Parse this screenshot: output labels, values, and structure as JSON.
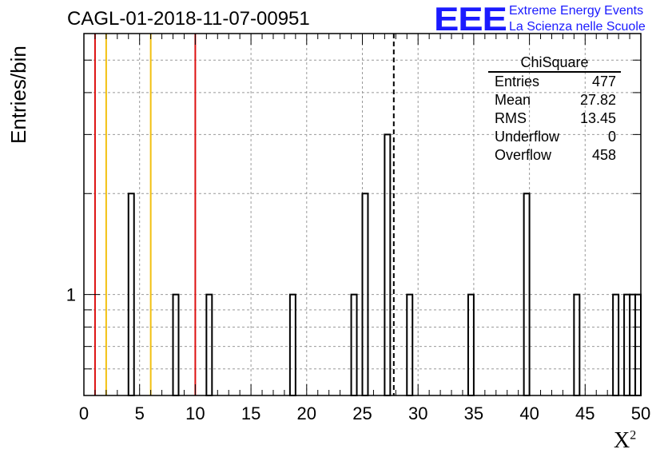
{
  "title": "CAGL-01-2018-11-07-00951",
  "logo": {
    "mark": "EEE",
    "line1": "Extreme Energy Events",
    "line2": "La Scienza nelle Scuole",
    "color": "#1a1aff"
  },
  "stats_box": {
    "name": "ChiSquare",
    "rows": [
      {
        "label": "Entries",
        "value": "477"
      },
      {
        "label": "Mean",
        "value": "27.82"
      },
      {
        "label": "RMS",
        "value": "13.45"
      },
      {
        "label": "Underflow",
        "value": "0"
      },
      {
        "label": "Overflow",
        "value": "458"
      }
    ]
  },
  "chart_data": {
    "type": "bar",
    "xlabel": "X",
    "xlabel_sup": "2",
    "ylabel": "Entries/bin",
    "xlim": [
      0,
      50
    ],
    "ylim_log": [
      0.5,
      6
    ],
    "y_scale": "log",
    "grid": true,
    "bin_width": 0.5,
    "x_ticks": [
      "0",
      "5",
      "10",
      "15",
      "20",
      "25",
      "30",
      "35",
      "40",
      "45",
      "50"
    ],
    "y_tick_label": "1",
    "bins": [
      {
        "x": 4.0,
        "count": 2
      },
      {
        "x": 8.0,
        "count": 1
      },
      {
        "x": 11.0,
        "count": 1
      },
      {
        "x": 18.5,
        "count": 1
      },
      {
        "x": 24.0,
        "count": 1
      },
      {
        "x": 25.0,
        "count": 2
      },
      {
        "x": 27.0,
        "count": 3
      },
      {
        "x": 29.0,
        "count": 1
      },
      {
        "x": 34.5,
        "count": 1
      },
      {
        "x": 39.5,
        "count": 2
      },
      {
        "x": 44.0,
        "count": 1
      },
      {
        "x": 47.5,
        "count": 1
      },
      {
        "x": 48.5,
        "count": 1
      },
      {
        "x": 49.0,
        "count": 1
      },
      {
        "x": 49.5,
        "count": 1
      }
    ],
    "vertical_lines": [
      {
        "x": 1,
        "color": "#dd1111",
        "style": "solid"
      },
      {
        "x": 2,
        "color": "#f2c010",
        "style": "solid"
      },
      {
        "x": 6,
        "color": "#f2c010",
        "style": "solid"
      },
      {
        "x": 10,
        "color": "#dd1111",
        "style": "solid"
      },
      {
        "x": 27.82,
        "color": "#000000",
        "style": "dashed"
      }
    ]
  }
}
